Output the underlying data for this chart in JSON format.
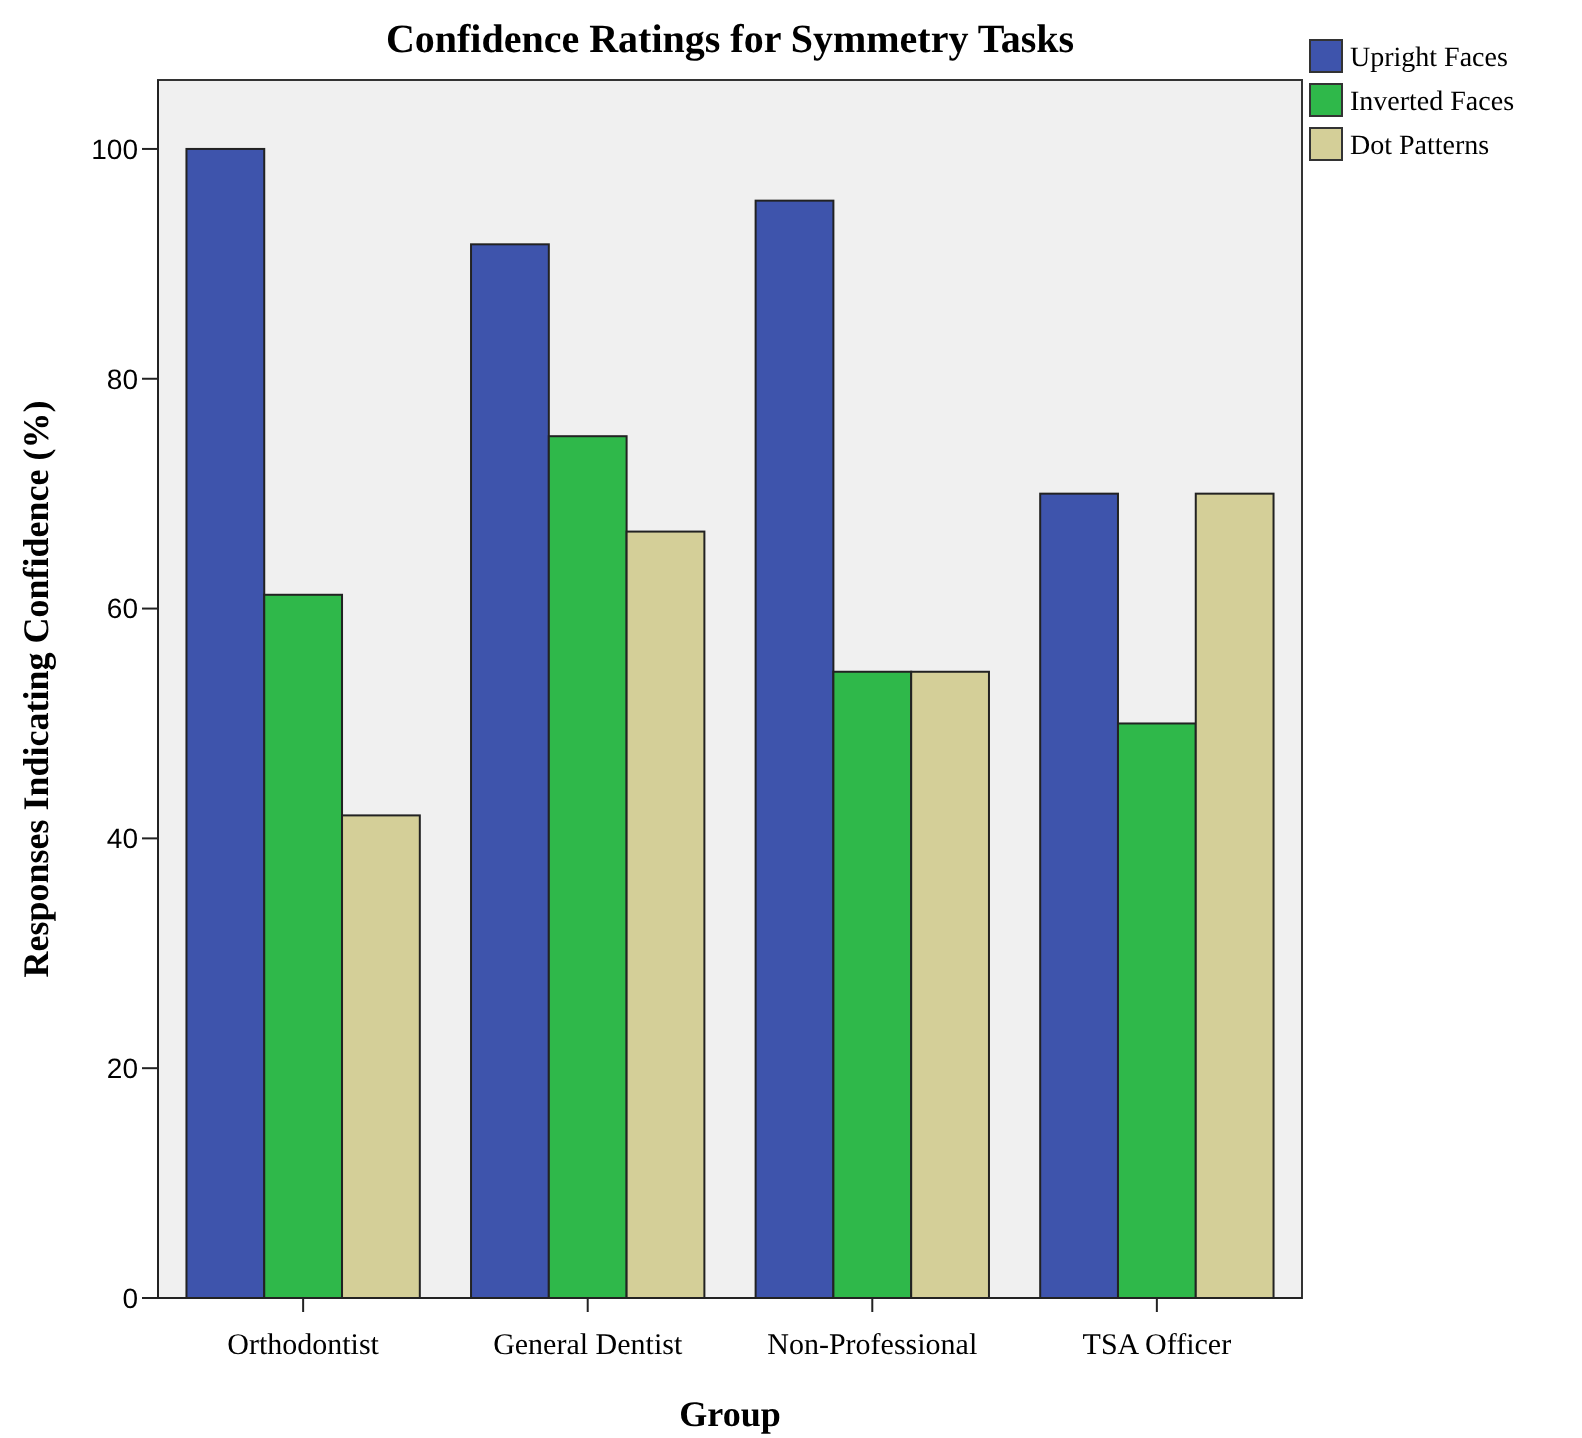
{
  "chart_data": {
    "type": "bar",
    "title": "Confidence Ratings for Symmetry Tasks",
    "xlabel": "Group",
    "ylabel": "Responses Indicating Confidence (%)",
    "categories": [
      "Orthodontist",
      "General Dentist",
      "Non-Professional",
      "TSA Officer"
    ],
    "series": [
      {
        "name": "Upright Faces",
        "color": "#3e54ac",
        "values": [
          100,
          91.7,
          95.5,
          70
        ]
      },
      {
        "name": "Inverted Faces",
        "color": "#2fb84a",
        "values": [
          61.2,
          75,
          54.5,
          50
        ]
      },
      {
        "name": "Dot Patterns",
        "color": "#d4cf98",
        "values": [
          42,
          66.7,
          54.5,
          70
        ]
      }
    ],
    "ylim": [
      0,
      106
    ],
    "yticks": [
      0,
      20,
      40,
      60,
      80,
      100
    ],
    "grid": false,
    "legend": "top right"
  }
}
